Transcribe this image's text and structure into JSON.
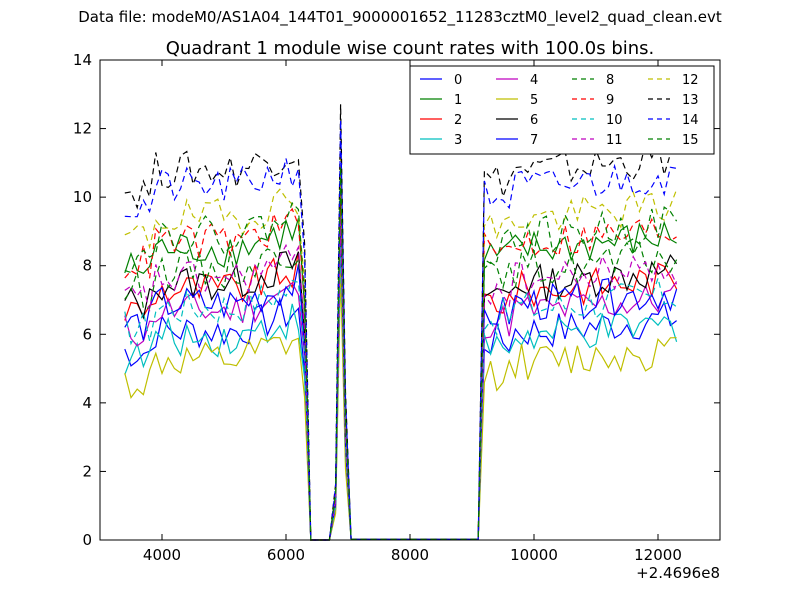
{
  "figure": {
    "suptitle": "Data file: modeM0/AS1A04_144T01_9000001652_11283cztM0_level2_quad_clean.evt"
  },
  "chart_data": {
    "type": "line",
    "title": "Quadrant 1 module wise count rates with 100.0s bins.",
    "xlabel": "",
    "ylabel": "",
    "x_offset_label": "+2.4696e8",
    "xlim": [
      3000,
      13000
    ],
    "ylim": [
      0,
      14
    ],
    "xticks": [
      4000,
      6000,
      8000,
      10000,
      12000
    ],
    "yticks": [
      0,
      2,
      4,
      6,
      8,
      10,
      12,
      14
    ],
    "grid": false,
    "legend_position": "top-right",
    "legend_columns": 4,
    "series_base_levels": [
      6.1,
      8.5,
      7.3,
      5.9,
      6.7,
      5.2,
      7.5,
      6.9,
      7.9,
      8.7,
      6.8,
      7.6,
      9.4,
      10.8,
      10.3,
      8.9
    ],
    "series": [
      {
        "name": "0",
        "color": "#0000ff",
        "dash": false
      },
      {
        "name": "1",
        "color": "#008000",
        "dash": false
      },
      {
        "name": "2",
        "color": "#ff0000",
        "dash": false
      },
      {
        "name": "3",
        "color": "#00bfbf",
        "dash": false
      },
      {
        "name": "4",
        "color": "#bf00bf",
        "dash": false
      },
      {
        "name": "5",
        "color": "#bfbf00",
        "dash": false
      },
      {
        "name": "6",
        "color": "#000000",
        "dash": false
      },
      {
        "name": "7",
        "color": "#0000ff",
        "dash": false
      },
      {
        "name": "8",
        "color": "#008000",
        "dash": true
      },
      {
        "name": "9",
        "color": "#ff0000",
        "dash": true
      },
      {
        "name": "10",
        "color": "#00bfbf",
        "dash": true
      },
      {
        "name": "11",
        "color": "#bf00bf",
        "dash": true
      },
      {
        "name": "12",
        "color": "#bfbf00",
        "dash": true
      },
      {
        "name": "13",
        "color": "#000000",
        "dash": true
      },
      {
        "name": "14",
        "color": "#0000ff",
        "dash": true
      },
      {
        "name": "15",
        "color": "#008000",
        "dash": true
      }
    ]
  }
}
